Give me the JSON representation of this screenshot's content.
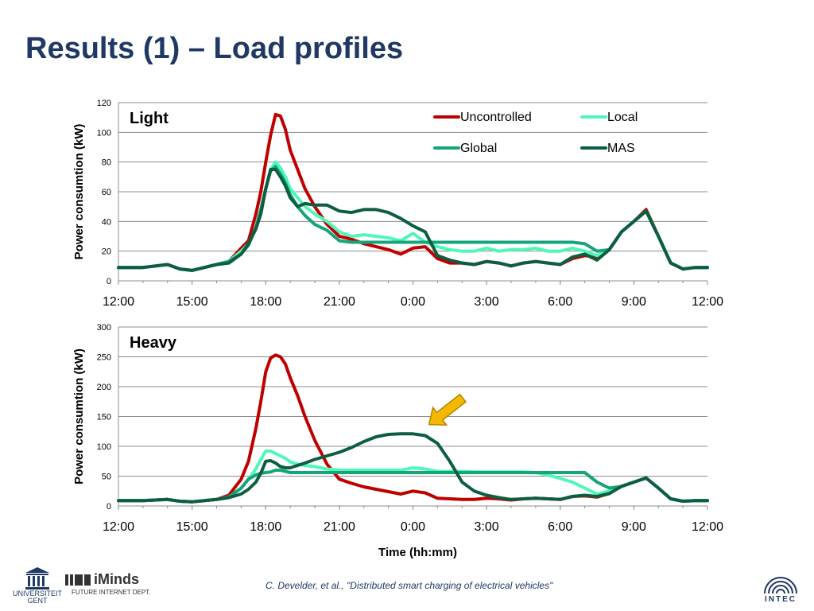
{
  "slide": {
    "title": "Results (1) – Load profiles",
    "citation": "C. Develder, et al., \"Distributed smart charging of electrical vehicles\"",
    "logos": {
      "ugent": "UNIVERSITEIT GENT",
      "iminds": "iMinds",
      "iminds_sub": "FUTURE INTERNET DEPT.",
      "intec": "INTEC"
    },
    "annotation": {
      "icon": "arrow-icon",
      "color": "#f5b800"
    }
  },
  "chart_data": [
    {
      "type": "line",
      "panel_label": "Light",
      "ylabel": "Power consumtion (kW)",
      "xlabel": "",
      "ylim": [
        0,
        120
      ],
      "yticks": [
        0,
        20,
        40,
        60,
        80,
        100,
        120
      ],
      "xlim": [
        12,
        36
      ],
      "xtick_labels": [
        "12:00",
        "15:00",
        "18:00",
        "21:00",
        "0:00",
        "3:00",
        "6:00",
        "9:00",
        "12:00"
      ],
      "grid": true,
      "legend_position": "top-right",
      "series": [
        {
          "name": "Uncontrolled",
          "color": "#c00000",
          "x": [
            12,
            13,
            14,
            14.5,
            15,
            15.5,
            16,
            16.5,
            17,
            17.3,
            17.6,
            17.8,
            18,
            18.2,
            18.4,
            18.6,
            18.8,
            19,
            19.3,
            19.6,
            20,
            20.5,
            21,
            21.5,
            22,
            22.5,
            23,
            23.5,
            24,
            24.5,
            25,
            25.5,
            26,
            26.5,
            27,
            27.5,
            28,
            28.5,
            29,
            29.5,
            30,
            30.5,
            31,
            31.5,
            32,
            32.5,
            33,
            33.5,
            34,
            34.5,
            35,
            35.5,
            36
          ],
          "y": [
            9,
            9,
            11,
            8,
            7,
            9,
            11,
            13,
            22,
            27,
            45,
            60,
            80,
            98,
            112,
            111,
            102,
            88,
            75,
            62,
            50,
            38,
            30,
            28,
            25,
            23,
            21,
            18,
            22,
            23,
            15,
            12,
            12,
            11,
            13,
            12,
            10,
            12,
            13,
            12,
            11,
            15,
            17,
            16,
            21,
            33,
            40,
            48,
            30,
            12,
            8,
            9,
            9
          ]
        },
        {
          "name": "Local",
          "color": "#4ff7b9",
          "x": [
            12,
            13,
            14,
            14.5,
            15,
            15.5,
            16,
            16.5,
            17,
            17.3,
            17.6,
            17.8,
            18,
            18.2,
            18.4,
            18.6,
            18.8,
            19,
            19.3,
            19.6,
            20,
            20.5,
            21,
            21.5,
            22,
            22.5,
            23,
            23.5,
            24,
            24.5,
            25,
            25.5,
            26,
            26.5,
            27,
            27.5,
            28,
            28.5,
            29,
            29.5,
            30,
            30.5,
            31,
            31.5,
            32,
            32.5,
            33,
            33.5,
            34,
            34.5,
            35,
            35.5,
            36
          ],
          "y": [
            9,
            9,
            11,
            8,
            7,
            9,
            11,
            13,
            20,
            25,
            35,
            48,
            62,
            75,
            80,
            76,
            70,
            62,
            56,
            50,
            45,
            40,
            33,
            30,
            31,
            30,
            29,
            27,
            32,
            26,
            23,
            21,
            20,
            20,
            22,
            20,
            21,
            21,
            22,
            20,
            20,
            22,
            20,
            17,
            21,
            33,
            40,
            47,
            30,
            12,
            8,
            9,
            9
          ]
        },
        {
          "name": "Global",
          "color": "#16a47a",
          "x": [
            12,
            13,
            14,
            14.5,
            15,
            15.5,
            16,
            16.5,
            17,
            17.3,
            17.6,
            17.8,
            18,
            18.2,
            18.4,
            18.6,
            18.8,
            19,
            19.3,
            19.6,
            20,
            20.5,
            21,
            21.5,
            22,
            22.5,
            23,
            23.5,
            24,
            24.5,
            25,
            25.5,
            26,
            26.5,
            27,
            27.5,
            28,
            28.5,
            29,
            29.5,
            30,
            30.5,
            31,
            31.5,
            32,
            32.5,
            33,
            33.5,
            34,
            34.5,
            35,
            35.5,
            36
          ],
          "y": [
            9,
            9,
            11,
            8,
            7,
            9,
            11,
            13,
            18,
            24,
            36,
            48,
            62,
            74,
            77,
            72,
            66,
            58,
            50,
            44,
            38,
            34,
            27,
            26,
            26,
            26,
            26,
            26,
            26,
            26,
            26,
            26,
            26,
            26,
            26,
            26,
            26,
            26,
            26,
            26,
            26,
            26,
            25,
            20,
            21,
            33,
            40,
            47,
            30,
            12,
            8,
            9,
            9
          ]
        },
        {
          "name": "MAS",
          "color": "#0d5e40",
          "x": [
            12,
            13,
            14,
            14.5,
            15,
            15.5,
            16,
            16.5,
            17,
            17.3,
            17.6,
            17.8,
            18,
            18.2,
            18.4,
            18.6,
            18.8,
            19,
            19.3,
            19.6,
            20,
            20.5,
            21,
            21.5,
            22,
            22.5,
            23,
            23.5,
            24,
            24.5,
            25,
            25.5,
            26,
            26.5,
            27,
            27.5,
            28,
            28.5,
            29,
            29.5,
            30,
            30.5,
            31,
            31.5,
            32,
            32.5,
            33,
            33.5,
            34,
            34.5,
            35,
            35.5,
            36
          ],
          "y": [
            9,
            9,
            11,
            8,
            7,
            9,
            11,
            12,
            18,
            25,
            35,
            45,
            62,
            75,
            75,
            70,
            64,
            56,
            50,
            52,
            51,
            51,
            47,
            46,
            48,
            48,
            46,
            42,
            37,
            33,
            17,
            14,
            12,
            11,
            13,
            12,
            10,
            12,
            13,
            12,
            11,
            16,
            18,
            14,
            21,
            33,
            40,
            47,
            30,
            12,
            8,
            9,
            9
          ]
        }
      ]
    },
    {
      "type": "line",
      "panel_label": "Heavy",
      "ylabel": "Power consumtion (kW)",
      "xlabel": "Time (hh:mm)",
      "ylim": [
        0,
        300
      ],
      "yticks": [
        0,
        50,
        100,
        150,
        200,
        250,
        300
      ],
      "xlim": [
        12,
        36
      ],
      "xtick_labels": [
        "12:00",
        "15:00",
        "18:00",
        "21:00",
        "0:00",
        "3:00",
        "6:00",
        "9:00",
        "12:00"
      ],
      "grid": true,
      "series": [
        {
          "name": "Uncontrolled",
          "color": "#c00000",
          "x": [
            12,
            13,
            14,
            14.5,
            15,
            15.5,
            16,
            16.5,
            17,
            17.3,
            17.6,
            17.8,
            18,
            18.2,
            18.4,
            18.6,
            18.8,
            19,
            19.3,
            19.6,
            20,
            20.5,
            21,
            21.5,
            22,
            22.5,
            23,
            23.5,
            24,
            24.5,
            25,
            25.5,
            26,
            26.5,
            27,
            27.5,
            28,
            28.5,
            29,
            29.5,
            30,
            30.5,
            31,
            31.5,
            32,
            32.5,
            33,
            33.5,
            34,
            34.5,
            35,
            35.5,
            36
          ],
          "y": [
            9,
            9,
            11,
            8,
            7,
            9,
            11,
            18,
            45,
            75,
            130,
            175,
            225,
            248,
            253,
            250,
            238,
            215,
            185,
            150,
            110,
            70,
            45,
            38,
            32,
            28,
            24,
            20,
            25,
            22,
            13,
            12,
            11,
            11,
            13,
            12,
            10,
            12,
            13,
            12,
            11,
            16,
            17,
            15,
            21,
            33,
            40,
            47,
            30,
            12,
            8,
            9,
            9
          ]
        },
        {
          "name": "Local",
          "color": "#4ff7b9",
          "x": [
            12,
            13,
            14,
            14.5,
            15,
            15.5,
            16,
            16.5,
            17,
            17.3,
            17.6,
            17.8,
            18,
            18.2,
            18.4,
            18.6,
            18.8,
            19,
            19.3,
            19.6,
            20,
            20.5,
            21,
            21.5,
            22,
            22.5,
            23,
            23.5,
            24,
            24.5,
            25,
            25.5,
            26,
            26.5,
            27,
            27.5,
            28,
            28.5,
            29,
            29.5,
            30,
            30.5,
            31,
            31.5,
            32,
            32.5,
            33,
            33.5,
            34,
            34.5,
            35,
            35.5,
            36
          ],
          "y": [
            9,
            9,
            11,
            8,
            7,
            9,
            11,
            15,
            30,
            45,
            62,
            78,
            92,
            92,
            88,
            84,
            80,
            74,
            70,
            68,
            66,
            62,
            60,
            60,
            60,
            60,
            60,
            60,
            64,
            62,
            58,
            58,
            58,
            57,
            57,
            57,
            57,
            57,
            56,
            52,
            46,
            40,
            30,
            20,
            25,
            33,
            40,
            47,
            30,
            12,
            8,
            9,
            9
          ]
        },
        {
          "name": "Global",
          "color": "#16a47a",
          "x": [
            12,
            13,
            14,
            14.5,
            15,
            15.5,
            16,
            16.5,
            17,
            17.3,
            17.6,
            17.8,
            18,
            18.2,
            18.4,
            18.6,
            18.8,
            19,
            19.3,
            19.6,
            20,
            20.5,
            21,
            21.5,
            22,
            22.5,
            23,
            23.5,
            24,
            24.5,
            25,
            25.5,
            26,
            26.5,
            27,
            27.5,
            28,
            28.5,
            29,
            29.5,
            30,
            30.5,
            31,
            31.5,
            32,
            32.5,
            33,
            33.5,
            34,
            34.5,
            35,
            35.5,
            36
          ],
          "y": [
            9,
            9,
            11,
            8,
            7,
            9,
            11,
            15,
            30,
            45,
            52,
            55,
            56,
            57,
            60,
            60,
            58,
            56,
            56,
            56,
            56,
            56,
            56,
            56,
            56,
            56,
            56,
            56,
            56,
            56,
            56,
            56,
            56,
            56,
            56,
            56,
            56,
            56,
            56,
            56,
            56,
            56,
            56,
            40,
            30,
            33,
            40,
            47,
            30,
            12,
            8,
            9,
            9
          ]
        },
        {
          "name": "MAS",
          "color": "#0d5e40",
          "x": [
            12,
            13,
            14,
            14.5,
            15,
            15.5,
            16,
            16.5,
            17,
            17.3,
            17.6,
            17.8,
            18,
            18.2,
            18.4,
            18.6,
            18.8,
            19,
            19.3,
            19.6,
            20,
            20.5,
            21,
            21.5,
            22,
            22.5,
            23,
            23.5,
            24,
            24.5,
            25,
            25.5,
            26,
            26.5,
            27,
            27.5,
            28,
            28.5,
            29,
            29.5,
            30,
            30.5,
            31,
            31.5,
            32,
            32.5,
            33,
            33.5,
            34,
            34.5,
            35,
            35.5,
            36
          ],
          "y": [
            9,
            9,
            11,
            8,
            7,
            9,
            11,
            14,
            20,
            28,
            40,
            55,
            75,
            76,
            72,
            66,
            64,
            64,
            68,
            72,
            78,
            84,
            90,
            98,
            108,
            116,
            120,
            121,
            121,
            118,
            105,
            75,
            40,
            25,
            18,
            14,
            11,
            12,
            13,
            12,
            11,
            16,
            18,
            16,
            21,
            33,
            40,
            47,
            30,
            12,
            8,
            9,
            9
          ]
        }
      ]
    }
  ]
}
